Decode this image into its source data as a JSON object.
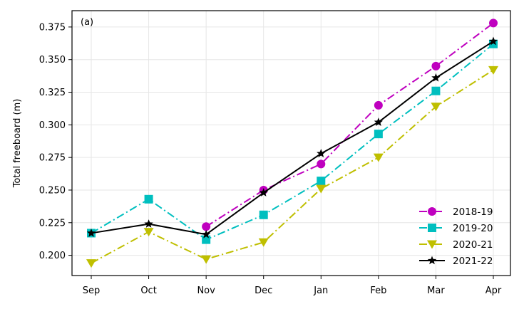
{
  "chart_data": {
    "type": "line",
    "panel_label": "(a)",
    "title": "",
    "xlabel": "",
    "ylabel": "Total freeboard (m)",
    "categories": [
      "Sep",
      "Oct",
      "Nov",
      "Dec",
      "Jan",
      "Feb",
      "Mar",
      "Apr"
    ],
    "ylim": [
      0.1845,
      0.3875
    ],
    "yticks": [
      "0.200",
      "0.225",
      "0.250",
      "0.275",
      "0.300",
      "0.325",
      "0.350",
      "0.375"
    ],
    "grid": true,
    "legend_position": "lower-right",
    "series": [
      {
        "name": "2018-19",
        "values": [
          null,
          null,
          0.222,
          0.25,
          0.27,
          0.315,
          0.345,
          0.378
        ],
        "color": "#bf00bf",
        "marker": "circle",
        "dash": "dash-dot"
      },
      {
        "name": "2019-20",
        "values": [
          0.217,
          0.243,
          0.212,
          0.231,
          0.257,
          0.293,
          0.326,
          0.362
        ],
        "color": "#00bfbf",
        "marker": "square",
        "dash": "dash-dot"
      },
      {
        "name": "2020-21",
        "values": [
          0.194,
          0.218,
          0.197,
          0.21,
          0.251,
          0.275,
          0.314,
          0.342
        ],
        "color": "#bfbf00",
        "marker": "triangle-down",
        "dash": "dash-dot"
      },
      {
        "name": "2021-22",
        "values": [
          0.217,
          0.224,
          0.216,
          0.248,
          0.278,
          0.302,
          0.336,
          0.364
        ],
        "color": "#000000",
        "marker": "star",
        "dash": "solid"
      }
    ]
  }
}
